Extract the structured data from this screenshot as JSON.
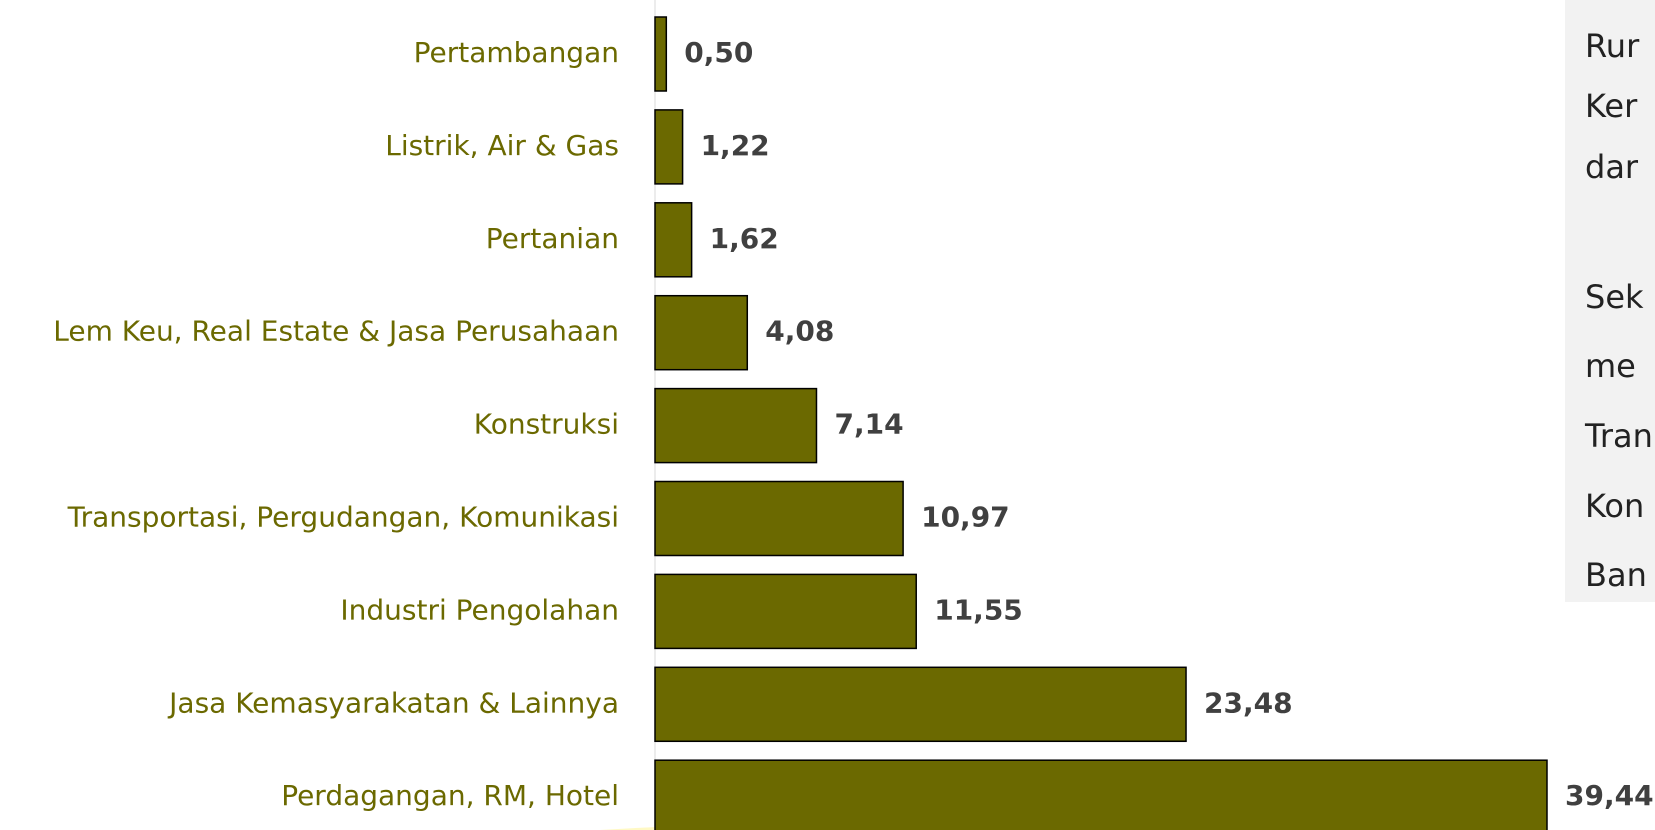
{
  "chart_data": {
    "type": "bar",
    "orientation": "horizontal",
    "categories": [
      "Pertambangan",
      "Listrik, Air & Gas",
      "Pertanian",
      "Lem Keu, Real Estate & Jasa Perusahaan",
      "Konstruksi",
      "Transportasi, Pergudangan, Komunikasi",
      "Industri Pengolahan",
      "Jasa Kemasyarakatan & Lainnya",
      "Perdagangan, RM, Hotel"
    ],
    "values": [
      0.5,
      1.22,
      1.62,
      4.08,
      7.14,
      10.97,
      11.55,
      23.48,
      39.44
    ],
    "value_labels": [
      "0,50",
      "1,22",
      "1,62",
      "4,08",
      "7,14",
      "10,97",
      "11,55",
      "23,48",
      "39,44"
    ],
    "color": "#6b6900"
  },
  "side_text": {
    "paragraphs": [
      [
        "Rur",
        "Ker",
        "dar"
      ],
      [
        "Sek",
        "me",
        "Tran",
        "Kon",
        "Ban"
      ]
    ]
  }
}
